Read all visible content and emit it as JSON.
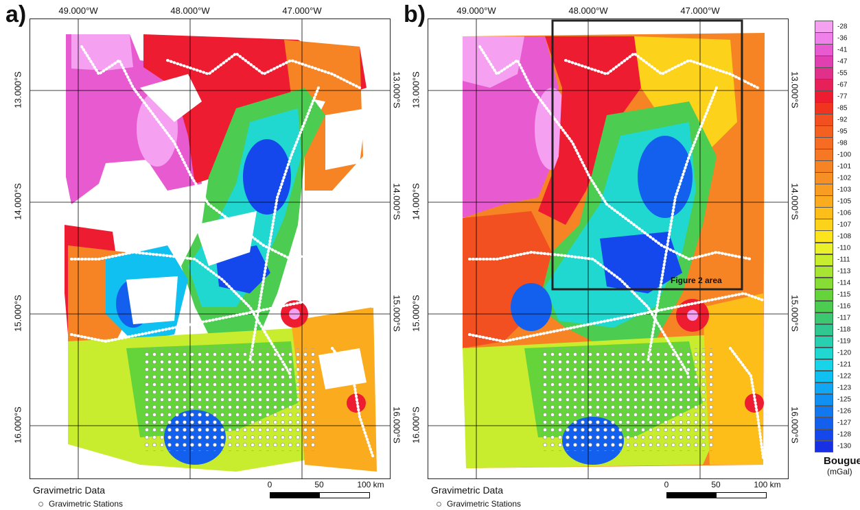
{
  "panels": [
    {
      "letter": "a)"
    },
    {
      "letter": "b)"
    }
  ],
  "longitudes": [
    "49.000°W",
    "48.000°W",
    "47.000°W"
  ],
  "latitudes": [
    "13.000°S",
    "14.000°S",
    "15.000°S",
    "16.000°S"
  ],
  "legend": {
    "title": "Gravimetric Data",
    "station_label": "Gravimetric Stations"
  },
  "scale_bar": {
    "labels": [
      "0",
      "50",
      "100 km"
    ]
  },
  "figure_box_label": "Figure 2 area",
  "colorbar": {
    "title": "Bouguer",
    "unit": "(mGal)",
    "levels": [
      "-28",
      "-36",
      "-41",
      "-47",
      "-55",
      "-67",
      "-77",
      "-85",
      "-92",
      "-95",
      "-98",
      "-100",
      "-101",
      "-102",
      "-103",
      "-105",
      "-106",
      "-107",
      "-108",
      "-110",
      "-111",
      "-113",
      "-114",
      "-115",
      "-116",
      "-117",
      "-118",
      "-119",
      "-120",
      "-121",
      "-122",
      "-123",
      "-125",
      "-126",
      "-127",
      "-128",
      "-130"
    ],
    "colors": [
      "#f5a0f0",
      "#f080ea",
      "#e85ad0",
      "#e040b0",
      "#e0308a",
      "#e8205a",
      "#ee1c30",
      "#f03420",
      "#f25020",
      "#f46020",
      "#f56c22",
      "#f67824",
      "#f68424",
      "#f79024",
      "#f89c22",
      "#fbab1e",
      "#fdbe1a",
      "#fdd21a",
      "#fde41c",
      "#eaf02a",
      "#c8ec2e",
      "#a8e432",
      "#88dc36",
      "#64d43a",
      "#4ccc50",
      "#3cc870",
      "#30c890",
      "#28d0b0",
      "#20d8d0",
      "#18d4e8",
      "#10c0f0",
      "#10a8f4",
      "#1090f2",
      "#1278f0",
      "#1460ee",
      "#1448ec",
      "#1830e4"
    ]
  }
}
